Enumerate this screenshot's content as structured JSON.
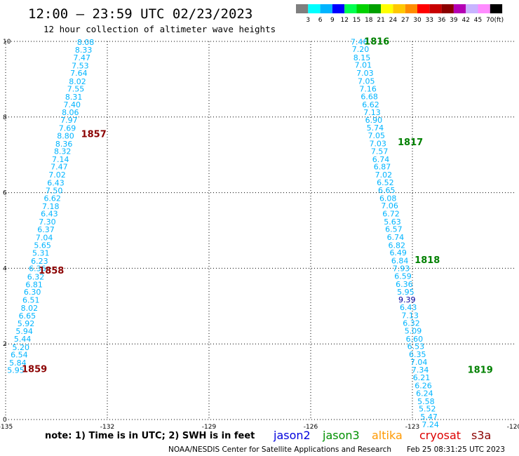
{
  "header": {
    "title": "12:00 – 23:59 UTC 02/23/2023",
    "subtitle": "12 hour collection of altimeter wave heights"
  },
  "color_scale": {
    "colors": [
      "#7f7f7f",
      "#00ffff",
      "#00b4ff",
      "#0000ff",
      "#00ff50",
      "#00d200",
      "#00a000",
      "#ffff00",
      "#ffc800",
      "#ff8c00",
      "#ff0000",
      "#c80000",
      "#8b0000",
      "#b400b4",
      "#c8b4ff",
      "#ff8cff",
      "#000000"
    ],
    "labels": [
      "3",
      "6",
      "9",
      "12",
      "15",
      "18",
      "21",
      "24",
      "27",
      "30",
      "33",
      "36",
      "39",
      "42",
      "45",
      "70"
    ],
    "unit": "(ft)"
  },
  "chart_data": {
    "type": "scatter",
    "title": "12:00 – 23:59 UTC 02/23/2023",
    "subtitle": "12 hour collection of altimeter wave heights",
    "xlabel": "",
    "ylabel": "",
    "xlim": [
      -135,
      -120
    ],
    "ylim": [
      0,
      10
    ],
    "x_ticks": [
      "-135",
      "-132",
      "-129",
      "-126",
      "-123",
      "-120"
    ],
    "y_ticks": [
      "0",
      "2",
      "4",
      "6",
      "8",
      "10"
    ],
    "grid": true,
    "tracks": [
      {
        "satellite": "jason3",
        "color": "#00b4ff",
        "points": [
          {
            "x": -132.64,
            "y": 9.91,
            "label": "8.08"
          },
          {
            "x": -132.7,
            "y": 9.7,
            "label": "8.33"
          },
          {
            "x": -132.75,
            "y": 9.5,
            "label": "7.47"
          },
          {
            "x": -132.8,
            "y": 9.29,
            "label": "7.53"
          },
          {
            "x": -132.84,
            "y": 9.09,
            "label": "7.64"
          },
          {
            "x": -132.88,
            "y": 8.87,
            "label": "8.02"
          },
          {
            "x": -132.93,
            "y": 8.67,
            "label": "7.55"
          },
          {
            "x": -132.99,
            "y": 8.46,
            "label": "8.31"
          },
          {
            "x": -133.04,
            "y": 8.26,
            "label": "7.40"
          },
          {
            "x": -133.09,
            "y": 8.05,
            "label": "8.06"
          },
          {
            "x": -133.13,
            "y": 7.85,
            "label": "7.97"
          },
          {
            "x": -133.18,
            "y": 7.63,
            "label": "7.69"
          },
          {
            "x": -133.23,
            "y": 7.43,
            "label": "8.80"
          },
          {
            "x": -133.28,
            "y": 7.22,
            "label": "8.36"
          },
          {
            "x": -133.32,
            "y": 7.02,
            "label": "8.32"
          },
          {
            "x": -133.38,
            "y": 6.81,
            "label": "7.14"
          },
          {
            "x": -133.42,
            "y": 6.61,
            "label": "7.47"
          },
          {
            "x": -133.48,
            "y": 6.4,
            "label": "7.02"
          },
          {
            "x": -133.52,
            "y": 6.19,
            "label": "6.43"
          },
          {
            "x": -133.57,
            "y": 5.98,
            "label": "7.50"
          },
          {
            "x": -133.62,
            "y": 5.78,
            "label": "6.62"
          },
          {
            "x": -133.67,
            "y": 5.57,
            "label": "7.18"
          },
          {
            "x": -133.71,
            "y": 5.37,
            "label": "6.43"
          },
          {
            "x": -133.77,
            "y": 5.16,
            "label": "7.30"
          },
          {
            "x": -133.81,
            "y": 4.95,
            "label": "6.37"
          },
          {
            "x": -133.86,
            "y": 4.74,
            "label": "7.04"
          },
          {
            "x": -133.91,
            "y": 4.54,
            "label": "5.65"
          },
          {
            "x": -133.96,
            "y": 4.33,
            "label": "5.31"
          },
          {
            "x": -134.0,
            "y": 4.12,
            "label": "6.23"
          },
          {
            "x": -134.06,
            "y": 3.92,
            "label": "6.36"
          },
          {
            "x": -134.11,
            "y": 3.7,
            "label": "6.32"
          },
          {
            "x": -134.16,
            "y": 3.5,
            "label": "6.81"
          },
          {
            "x": -134.21,
            "y": 3.3,
            "label": "6.30"
          },
          {
            "x": -134.25,
            "y": 3.09,
            "label": "6.51"
          },
          {
            "x": -134.3,
            "y": 2.88,
            "label": "8.02"
          },
          {
            "x": -134.36,
            "y": 2.67,
            "label": "6.65"
          },
          {
            "x": -134.4,
            "y": 2.47,
            "label": "5.92"
          },
          {
            "x": -134.45,
            "y": 2.26,
            "label": "5.94"
          },
          {
            "x": -134.5,
            "y": 2.06,
            "label": "5.44"
          },
          {
            "x": -134.55,
            "y": 1.84,
            "label": "5.20"
          },
          {
            "x": -134.6,
            "y": 1.64,
            "label": "6.54"
          },
          {
            "x": -134.64,
            "y": 1.43,
            "label": "5.84"
          },
          {
            "x": -134.7,
            "y": 1.23,
            "label": "5.95"
          }
        ],
        "times": [
          {
            "x": -132.4,
            "y": 7.47,
            "label": "1857",
            "color": "#8b0000"
          },
          {
            "x": -133.65,
            "y": 3.86,
            "label": "1858",
            "color": "#8b0000"
          },
          {
            "x": -134.15,
            "y": 1.25,
            "label": "1859",
            "color": "#8b0000"
          }
        ]
      },
      {
        "satellite": "jason3",
        "color": "#00b4ff",
        "points": [
          {
            "x": -124.57,
            "y": 9.92,
            "label": "7.46"
          },
          {
            "x": -124.53,
            "y": 9.72,
            "label": "7.20"
          },
          {
            "x": -124.49,
            "y": 9.5,
            "label": "8.15"
          },
          {
            "x": -124.45,
            "y": 9.3,
            "label": "7.01"
          },
          {
            "x": -124.4,
            "y": 9.09,
            "label": "7.03"
          },
          {
            "x": -124.36,
            "y": 8.88,
            "label": "7.05"
          },
          {
            "x": -124.31,
            "y": 8.67,
            "label": "7.16"
          },
          {
            "x": -124.27,
            "y": 8.47,
            "label": "6.68"
          },
          {
            "x": -124.23,
            "y": 8.26,
            "label": "6.62"
          },
          {
            "x": -124.19,
            "y": 8.05,
            "label": "7.13"
          },
          {
            "x": -124.14,
            "y": 7.85,
            "label": "6.90"
          },
          {
            "x": -124.1,
            "y": 7.64,
            "label": "5.74"
          },
          {
            "x": -124.06,
            "y": 7.44,
            "label": "7.05"
          },
          {
            "x": -124.02,
            "y": 7.23,
            "label": "7.03"
          },
          {
            "x": -123.97,
            "y": 7.02,
            "label": "7.57"
          },
          {
            "x": -123.93,
            "y": 6.81,
            "label": "6.74"
          },
          {
            "x": -123.89,
            "y": 6.61,
            "label": "6.87"
          },
          {
            "x": -123.85,
            "y": 6.4,
            "label": "7.02"
          },
          {
            "x": -123.8,
            "y": 6.2,
            "label": "6.52"
          },
          {
            "x": -123.76,
            "y": 5.99,
            "label": "6.65"
          },
          {
            "x": -123.72,
            "y": 5.78,
            "label": "6.08"
          },
          {
            "x": -123.67,
            "y": 5.58,
            "label": "7.06"
          },
          {
            "x": -123.63,
            "y": 5.37,
            "label": "6.72"
          },
          {
            "x": -123.59,
            "y": 5.16,
            "label": "5.63"
          },
          {
            "x": -123.55,
            "y": 4.96,
            "label": "6.57"
          },
          {
            "x": -123.5,
            "y": 4.75,
            "label": "6.74"
          },
          {
            "x": -123.46,
            "y": 4.54,
            "label": "6.82"
          },
          {
            "x": -123.42,
            "y": 4.34,
            "label": "6.49"
          },
          {
            "x": -123.37,
            "y": 4.13,
            "label": "6.84"
          },
          {
            "x": -123.33,
            "y": 3.92,
            "label": "7.93"
          },
          {
            "x": -123.28,
            "y": 3.72,
            "label": "6.59"
          },
          {
            "x": -123.24,
            "y": 3.51,
            "label": "6.36"
          },
          {
            "x": -123.2,
            "y": 3.3,
            "label": "5.95"
          },
          {
            "x": -123.16,
            "y": 3.1,
            "label": "9.39",
            "color": "#0000a0"
          },
          {
            "x": -123.12,
            "y": 2.89,
            "label": "6.43"
          },
          {
            "x": -123.07,
            "y": 2.68,
            "label": "7.13"
          },
          {
            "x": -123.03,
            "y": 2.48,
            "label": "6.32"
          },
          {
            "x": -122.98,
            "y": 2.27,
            "label": "5.09"
          },
          {
            "x": -122.94,
            "y": 2.06,
            "label": "6.60"
          },
          {
            "x": -122.9,
            "y": 1.86,
            "label": "6.53"
          },
          {
            "x": -122.85,
            "y": 1.65,
            "label": "6.35"
          },
          {
            "x": -122.81,
            "y": 1.45,
            "label": "7.04"
          },
          {
            "x": -122.77,
            "y": 1.24,
            "label": "7.34"
          },
          {
            "x": -122.73,
            "y": 1.04,
            "label": "6.21"
          },
          {
            "x": -122.68,
            "y": 0.83,
            "label": "6.26"
          },
          {
            "x": -122.64,
            "y": 0.62,
            "label": "6.24"
          },
          {
            "x": -122.6,
            "y": 0.41,
            "label": "5.58"
          },
          {
            "x": -122.56,
            "y": 0.21,
            "label": "5.52"
          },
          {
            "x": -122.51,
            "y": 0.0,
            "label": "5.47"
          },
          {
            "x": -122.47,
            "y": -0.2,
            "label": "7.24"
          }
        ],
        "times": [
          {
            "x": -124.05,
            "y": 9.92,
            "label": "1816",
            "color": "#008000"
          },
          {
            "x": -123.06,
            "y": 7.25,
            "label": "1817",
            "color": "#008000"
          },
          {
            "x": -122.56,
            "y": 4.14,
            "label": "1818",
            "color": "#008000"
          },
          {
            "x": -121.0,
            "y": 1.23,
            "label": "1819",
            "color": "#008000"
          }
        ]
      }
    ]
  },
  "legend": {
    "note": "note: 1) Time is in UTC; 2) SWH is in feet",
    "satellites": [
      {
        "name": "jason2",
        "color": "#0000dd"
      },
      {
        "name": "jason3",
        "color": "#009000"
      },
      {
        "name": "altika",
        "color": "#ff9900"
      },
      {
        "name": "cryosat",
        "color": "#dd0000"
      },
      {
        "name": "s3a",
        "color": "#8b0000"
      }
    ]
  },
  "footer": {
    "credit": "NOAA/NESDIS Center for Satellite Applications and Research",
    "timestamp": "Feb 25 08:31:25 UTC 2023"
  }
}
